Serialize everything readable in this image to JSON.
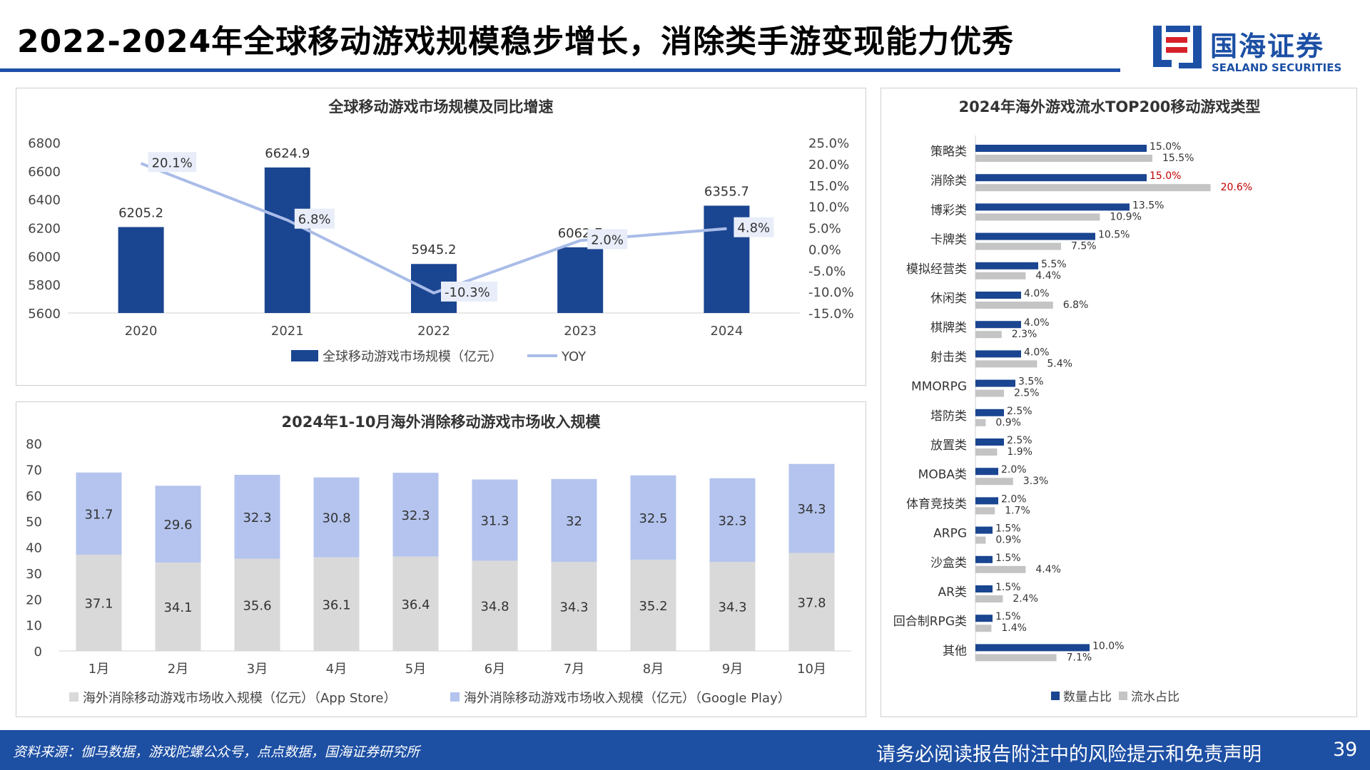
{
  "header": {
    "title": "2022-2024年全球移动游戏规模稳步增长，消除类手游变现能力优秀",
    "logo_cn": "国海证券",
    "logo_en": "SEALAND SECURITIES"
  },
  "footer": {
    "source": "资料来源：伽马数据，游戏陀螺公众号，点点数据，国海证券研究所",
    "disclaimer": "请务必阅读报告附注中的风险提示和免责声明",
    "page_number": "39"
  },
  "colors": {
    "primary": "#1a4590",
    "yoy_line": "#a9bce8",
    "app_store": "#d9d9d9",
    "google_play": "#b4c4ee",
    "flow_bar": "#c4c4c4",
    "highlight": "#c00000",
    "footer_bg": "#1d4fa3"
  },
  "chart_data": [
    {
      "type": "bar",
      "title": "全球移动游戏市场规模及同比增速",
      "categories": [
        "2020",
        "2021",
        "2022",
        "2023",
        "2024"
      ],
      "series": [
        {
          "name": "全球移动游戏市场规模（亿元）",
          "values": [
            6205.2,
            6624.9,
            5945.2,
            6062.7,
            6355.7
          ],
          "value_labels": [
            "6205.2",
            "6624.9",
            "5945.2",
            "6062.7",
            "6355.7"
          ]
        },
        {
          "name": "YOY",
          "type": "line",
          "axis": "right",
          "values": [
            20.1,
            6.8,
            -10.3,
            2.0,
            4.8
          ],
          "value_labels": [
            "20.1%",
            "6.8%",
            "-10.3%",
            "2.0%",
            "4.8%"
          ]
        }
      ],
      "ylim": [
        5600,
        6800
      ],
      "yticks": [
        "6800",
        "6600",
        "6400",
        "6200",
        "6000",
        "5800",
        "5600"
      ],
      "y2lim": [
        -15,
        25
      ],
      "y2ticks": [
        "25.0%",
        "20.0%",
        "15.0%",
        "10.0%",
        "5.0%",
        "0.0%",
        "-5.0%",
        "-10.0%",
        "-15.0%"
      ],
      "legend": "bottom"
    },
    {
      "type": "bar",
      "stacked": true,
      "title": "2024年1-10月海外消除移动游戏市场收入规模",
      "categories": [
        "1月",
        "2月",
        "3月",
        "4月",
        "5月",
        "6月",
        "7月",
        "8月",
        "9月",
        "10月"
      ],
      "series": [
        {
          "name": "海外消除移动游戏市场收入规模（亿元）（App Store）",
          "values": [
            37.1,
            34.1,
            35.6,
            36.1,
            36.4,
            34.8,
            34.3,
            35.2,
            34.3,
            37.8
          ],
          "value_labels": [
            "37.1",
            "34.1",
            "35.6",
            "36.1",
            "36.4",
            "34.8",
            "34.3",
            "35.2",
            "34.3",
            "37.8"
          ]
        },
        {
          "name": "海外消除移动游戏市场收入规模（亿元）（Google Play）",
          "values": [
            31.7,
            29.6,
            32.3,
            30.8,
            32.3,
            31.3,
            32,
            32.5,
            32.3,
            34.3
          ],
          "value_labels": [
            "31.7",
            "29.6",
            "32.3",
            "30.8",
            "32.3",
            "31.3",
            "32",
            "32.5",
            "32.3",
            "34.3"
          ]
        }
      ],
      "ylim": [
        0,
        80
      ],
      "yticks": [
        "80",
        "70",
        "60",
        "50",
        "40",
        "30",
        "20",
        "10",
        "0"
      ],
      "legend": "bottom"
    },
    {
      "type": "bar",
      "orientation": "horizontal",
      "title": "2024年海外游戏流水TOP200移动游戏类型",
      "categories": [
        "策略类",
        "消除类",
        "博彩类",
        "卡牌类",
        "模拟经营类",
        "休闲类",
        "棋牌类",
        "射击类",
        "MMORPG",
        "塔防类",
        "放置类",
        "MOBA类",
        "体育竞技类",
        "ARPG",
        "沙盒类",
        "AR类",
        "回合制RPG类",
        "其他"
      ],
      "series": [
        {
          "name": "数量占比",
          "values": [
            15.0,
            15.0,
            13.5,
            10.5,
            5.5,
            4.0,
            4.0,
            4.0,
            3.5,
            2.5,
            2.5,
            2.0,
            2.0,
            1.5,
            1.5,
            1.5,
            1.5,
            10.0
          ],
          "value_labels": [
            "15.0%",
            "15.0%",
            "13.5%",
            "10.5%",
            "5.5%",
            "4.0%",
            "4.0%",
            "4.0%",
            "3.5%",
            "2.5%",
            "2.5%",
            "2.0%",
            "2.0%",
            "1.5%",
            "1.5%",
            "1.5%",
            "1.5%",
            "10.0%"
          ]
        },
        {
          "name": "流水占比",
          "values": [
            15.5,
            20.6,
            10.9,
            7.5,
            4.4,
            6.8,
            2.3,
            5.4,
            2.5,
            0.9,
            1.9,
            3.3,
            1.7,
            0.9,
            4.4,
            2.4,
            1.4,
            7.1
          ],
          "value_labels": [
            "15.5%",
            "20.6%",
            "10.9%",
            "7.5%",
            "4.4%",
            "6.8%",
            "2.3%",
            "5.4%",
            "2.5%",
            "0.9%",
            "1.9%",
            "3.3%",
            "1.7%",
            "0.9%",
            "4.4%",
            "2.4%",
            "1.4%",
            "7.1%"
          ]
        }
      ],
      "highlighted_category": "消除类",
      "legend": "bottom"
    }
  ]
}
